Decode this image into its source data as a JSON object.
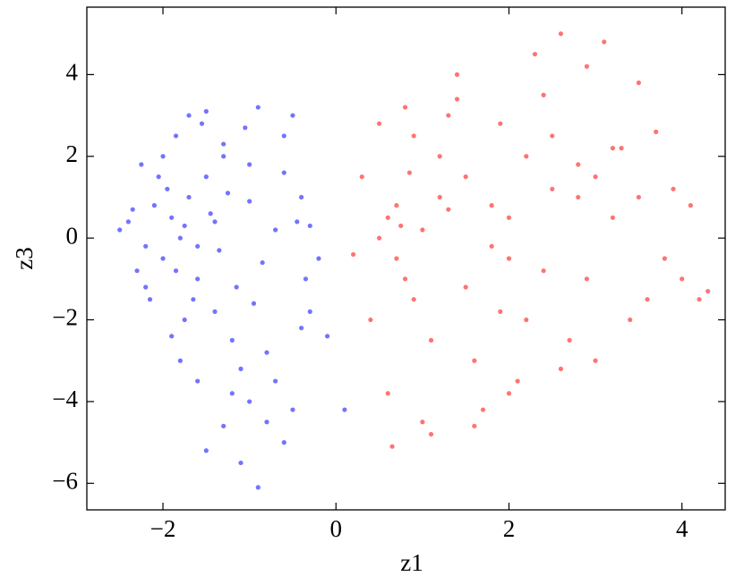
{
  "chart_data": {
    "type": "scatter",
    "x_label": "z1",
    "y_label": "z3",
    "xlim": [
      -2.88,
      4.5
    ],
    "ylim": [
      -6.65,
      5.65
    ],
    "xticks": [
      {
        "value": -2,
        "label": "−2"
      },
      0,
      2,
      4
    ],
    "yticks": [
      {
        "value": -6,
        "label": "−6"
      },
      {
        "value": -4,
        "label": "−4"
      },
      {
        "value": -2,
        "label": "−2"
      },
      0,
      2,
      4
    ],
    "series": [
      {
        "color": "#0000ff",
        "x": [
          -1.8,
          -1.9,
          -2.0,
          -1.7,
          -1.6,
          -2.1,
          -2.2,
          -1.5,
          -1.4,
          -1.3,
          -1.2,
          -1.0,
          -0.8,
          -0.6,
          -0.4,
          -0.3,
          -2.4,
          -2.5,
          -2.3,
          -1.85,
          -1.75,
          -1.95,
          -1.65,
          -1.55,
          -2.05,
          -1.1,
          -0.9,
          -0.7,
          -0.5,
          -0.35,
          -1.45,
          -1.35,
          -1.25,
          -1.15,
          -2.15,
          -2.25,
          -1.8,
          -1.7,
          -1.6,
          -1.9,
          -1.0,
          -0.8,
          -0.6,
          -0.5,
          -1.3,
          -1.5,
          -1.2,
          -0.9,
          -1.1,
          -0.7,
          -0.4,
          -0.2,
          -0.1,
          0.1,
          -2.0,
          -1.85,
          -1.4,
          -1.0,
          -0.6,
          -0.95,
          -1.6,
          -1.75,
          -2.2,
          -2.35,
          -1.3,
          -0.45,
          -0.3,
          -0.85,
          -1.05,
          -1.5
        ],
        "values": [
          0,
          0.5,
          -0.5,
          1,
          -1,
          0.8,
          -0.2,
          1.5,
          -1.8,
          2,
          -2.5,
          1.8,
          -2.8,
          2.5,
          -2.2,
          0.3,
          0.4,
          0.2,
          -0.8,
          2.5,
          -2,
          1.2,
          -1.5,
          2.8,
          1.5,
          -3.2,
          3.2,
          -3.5,
          3,
          -1,
          0.6,
          -0.3,
          1.1,
          -1.2,
          -1.5,
          1.8,
          -3,
          3,
          -3.5,
          -2.4,
          -4,
          -4.5,
          -5,
          -4.2,
          -4.6,
          -5.2,
          -3.8,
          -6.1,
          -5.5,
          0.2,
          1,
          -0.5,
          -2.4,
          -4.2,
          2,
          -0.8,
          0.4,
          0.9,
          1.6,
          -1.6,
          -0.2,
          0.3,
          -1.2,
          0.7,
          2.3,
          0.4,
          -1.8,
          -0.6,
          2.7,
          3.1
        ]
      },
      {
        "color": "#ff0000",
        "x": [
          0.5,
          0.7,
          0.8,
          0.6,
          1.0,
          1.2,
          1.5,
          1.8,
          2.0,
          2.2,
          2.5,
          2.8,
          3.0,
          3.2,
          3.5,
          3.8,
          4.0,
          4.2,
          0.3,
          0.4,
          0.9,
          1.1,
          1.3,
          1.6,
          1.9,
          2.1,
          2.4,
          2.7,
          2.9,
          3.3,
          3.6,
          3.9,
          4.3,
          0.6,
          0.8,
          1.0,
          1.4,
          1.7,
          2.3,
          2.6,
          3.1,
          3.4,
          0.7,
          0.9,
          1.2,
          1.5,
          2.0,
          2.4,
          2.8,
          3.2,
          0.2,
          0.5,
          1.1,
          1.6,
          2.2,
          2.9,
          3.7,
          0.75,
          1.3,
          1.9,
          0.65,
          2.6,
          3.0,
          2.5,
          1.8,
          0.85,
          4.1,
          3.5,
          2.0,
          1.4
        ],
        "values": [
          0,
          -0.5,
          -1,
          0.5,
          0.2,
          1,
          1.5,
          0.8,
          -0.5,
          2,
          1.2,
          1.8,
          1.5,
          0.5,
          1,
          -0.5,
          -1,
          -1.5,
          1.5,
          -2,
          2.5,
          -2.5,
          3,
          -3,
          2.8,
          -3.5,
          3.5,
          -2.5,
          4.2,
          2.2,
          -1.5,
          1.2,
          -1.3,
          -3.8,
          3.2,
          -4.5,
          3.4,
          -4.2,
          4.5,
          -3.2,
          4.8,
          -2,
          0.8,
          -1.5,
          2,
          -1.2,
          0.5,
          -0.8,
          1,
          2.2,
          -0.4,
          2.8,
          -4.8,
          -4.6,
          -2,
          -1,
          2.6,
          0.3,
          0.7,
          -1.8,
          -5.1,
          5,
          -3,
          2.5,
          -0.2,
          1.6,
          0.8,
          3.8,
          -3.8,
          4
        ]
      }
    ]
  }
}
